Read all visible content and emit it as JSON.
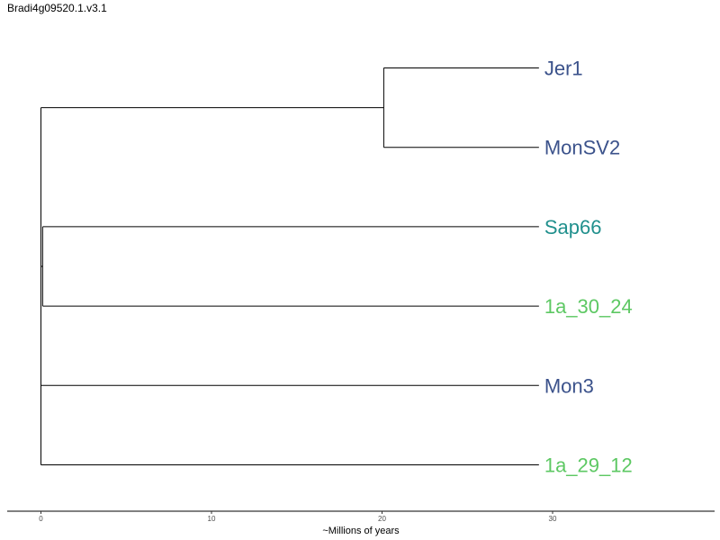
{
  "chart_data": {
    "type": "dendrogram",
    "title": "Bradi4g09520.1.v3.1",
    "xlabel": "~Millions of years",
    "xlim": [
      -2,
      40
    ],
    "xticks": [
      0,
      10,
      20,
      30
    ],
    "tips": [
      {
        "name": "Jer1",
        "color": "#3b528b"
      },
      {
        "name": "MonSV2",
        "color": "#3b528b"
      },
      {
        "name": "Sap66",
        "color": "#21908d"
      },
      {
        "name": "1a_30_24",
        "color": "#5dc863"
      },
      {
        "name": "Mon3",
        "color": "#3b528b"
      },
      {
        "name": "1a_29_12",
        "color": "#5dc863"
      }
    ],
    "tip_x": 29.2,
    "nodes": [
      {
        "id": "A",
        "x": 20.1,
        "children": [
          "Jer1",
          "MonSV2"
        ]
      },
      {
        "id": "B",
        "x": 0.1,
        "children": [
          "Sap66",
          "1a_30_24"
        ]
      },
      {
        "id": "C",
        "x": 0.0,
        "children": [
          "B",
          "Mon3"
        ]
      },
      {
        "id": "D",
        "x": 0.0,
        "children": [
          "C",
          "1a_29_12"
        ]
      },
      {
        "id": "root",
        "x": 0.0,
        "children": [
          "A",
          "D"
        ]
      }
    ]
  }
}
